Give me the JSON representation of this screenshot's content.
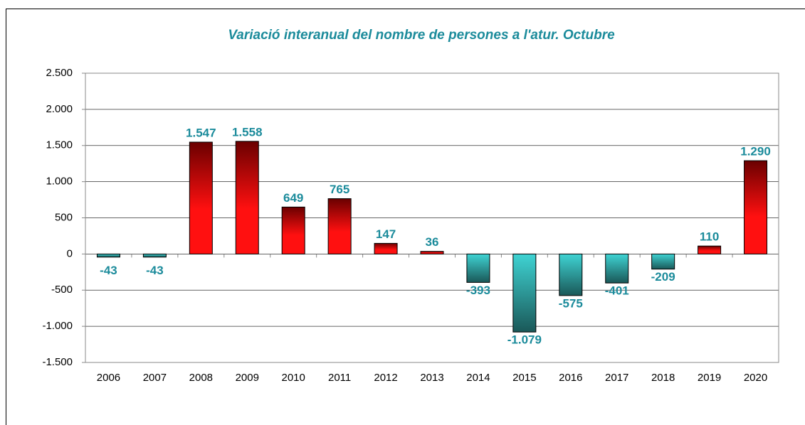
{
  "chart_data": {
    "type": "bar",
    "title": "Variació interanual del nombre de persones a l'atur. Octubre",
    "categories": [
      "2006",
      "2007",
      "2008",
      "2009",
      "2010",
      "2011",
      "2012",
      "2013",
      "2014",
      "2015",
      "2016",
      "2017",
      "2018",
      "2019",
      "2020"
    ],
    "values": [
      -43,
      -43,
      1547,
      1558,
      649,
      765,
      147,
      36,
      -393,
      -1079,
      -575,
      -401,
      -209,
      110,
      1290
    ],
    "value_labels": [
      "-43",
      "-43",
      "1.547",
      "1.558",
      "649",
      "765",
      "147",
      "36",
      "-393",
      "-1.079",
      "-575",
      "-401",
      "-209",
      "110",
      "1.290"
    ],
    "ylim": [
      -1500,
      2500
    ],
    "yticks": [
      {
        "value": -1500,
        "label": "-1.500"
      },
      {
        "value": -1000,
        "label": "-1.000"
      },
      -500,
      0,
      500,
      {
        "value": 1000,
        "label": "1.000"
      },
      {
        "value": 1500,
        "label": "1.500"
      },
      {
        "value": 2000,
        "label": "2.000"
      },
      {
        "value": 2500,
        "label": "2.500"
      }
    ],
    "grid": true,
    "positive_colors": [
      "#6a0000",
      "#ff1010"
    ],
    "negative_colors": [
      "#3fd3d3",
      "#1a5858"
    ]
  }
}
